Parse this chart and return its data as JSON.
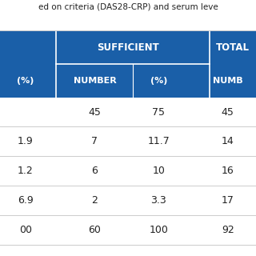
{
  "title": "ed on criteria (DAS28-CRP) and serum leve",
  "header_bg": "#1a5fa8",
  "header_text_color": "#ffffff",
  "separator_color": "#cccccc",
  "rows": [
    [
      "",
      "45",
      "75",
      "45"
    ],
    [
      "1.9",
      "7",
      "11.7",
      "14"
    ],
    [
      "1.2",
      "6",
      "10",
      "16"
    ],
    [
      "6.9",
      "2",
      "3.3",
      "17"
    ],
    [
      "00",
      "60",
      "100",
      "92"
    ]
  ],
  "figsize": [
    3.2,
    3.2
  ],
  "dpi": 100
}
